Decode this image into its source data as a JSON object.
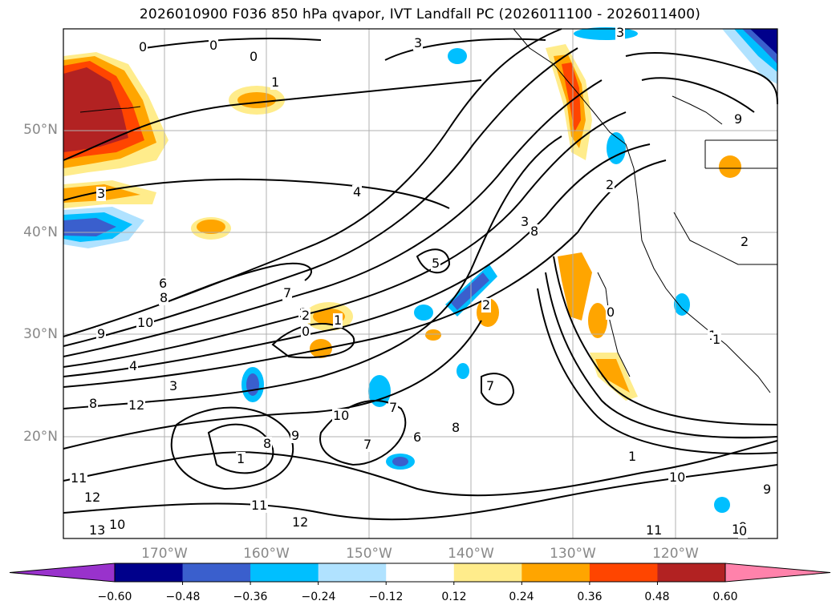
{
  "title": "2026010900 F036 850 hPa qvapor, IVT Landfall PC (2026011100 - 2026011400)",
  "lat_labels": [
    "50°N",
    "40°N",
    "30°N",
    "20°N"
  ],
  "lon_labels": [
    "170°W",
    "160°W",
    "150°W",
    "140°W",
    "130°W",
    "120°W"
  ],
  "colorbar": {
    "ticks": [
      "−0.60",
      "−0.48",
      "−0.36",
      "−0.24",
      "−0.12",
      "0.12",
      "0.24",
      "0.36",
      "0.48",
      "0.60"
    ],
    "colors": [
      "#9932cc",
      "#00008b",
      "#3a5fcd",
      "#00bfff",
      "#b0e2ff",
      "#ffffff",
      "#ffec8b",
      "#ffa500",
      "#ff4500",
      "#b22222",
      "#ff82ab"
    ],
    "extend": "both"
  },
  "contour_labels": [
    "0",
    "0",
    "0",
    "3",
    "3",
    "1",
    "3",
    "4",
    "3",
    "2",
    "3",
    "2",
    "1",
    "5",
    "7",
    "6",
    "8",
    "9",
    "10",
    "4",
    "2",
    "0",
    "1",
    "8",
    "12",
    "10",
    "7",
    "6",
    "7",
    "8",
    "9",
    "8",
    "1",
    "7",
    "8",
    "0",
    "1",
    "9",
    "10",
    "11",
    "12",
    "13",
    "11",
    "12",
    "10",
    "11",
    "11",
    "9",
    "9",
    "2",
    "2",
    "0",
    "1"
  ],
  "colors": {
    "coast": "#000000",
    "contour": "#000000",
    "grid": "#b0b0b0",
    "axis_label": "#888888"
  }
}
